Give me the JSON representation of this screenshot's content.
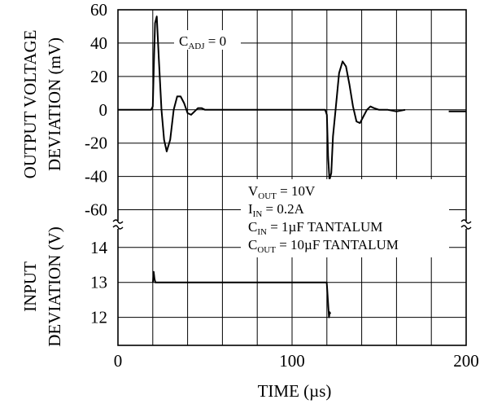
{
  "chart_data": {
    "type": "line",
    "x_axis": {
      "label": "TIME (µs)",
      "range": [
        0,
        200
      ],
      "ticks": [
        0,
        20,
        40,
        60,
        80,
        100,
        120,
        140,
        160,
        180,
        200
      ],
      "tick_labels": [
        "0",
        "100",
        "200"
      ],
      "labeled_ticks": [
        0,
        100,
        200
      ]
    },
    "panels": [
      {
        "id": "output",
        "ylabel_lines": [
          "OUTPUT VOLTAGE",
          "DEVIATION (mV)"
        ],
        "y_range": [
          -70,
          60
        ],
        "y_ticks": [
          60,
          40,
          20,
          0,
          -20,
          -40,
          -60
        ],
        "y_tick_labels": [
          "60",
          "40",
          "20",
          "0",
          "-20",
          "-40",
          "-60"
        ],
        "series": [
          {
            "x": [
              0,
              19,
              20,
              20.7,
              21.3,
              22.3,
              23.5,
              25,
              26.5,
              28,
              30,
              32,
              34,
              36,
              38,
              40,
              42,
              44,
              46,
              48,
              50,
              53,
              56,
              60,
              80,
              100,
              119,
              120,
              120.7,
              121.5,
              122.5,
              123.5,
              125,
              127,
              129,
              131,
              133,
              135,
              137,
              139,
              141,
              143,
              145,
              147,
              150,
              155,
              160,
              165
            ],
            "y": [
              0,
              0,
              2,
              30,
              52,
              56,
              30,
              0,
              -18,
              -25,
              -18,
              0,
              8,
              8,
              4,
              -2,
              -3,
              -1,
              1,
              1,
              0,
              0,
              0,
              0,
              0,
              0,
              0,
              -3,
              -28,
              -42,
              -38,
              -16,
              0,
              22,
              29,
              26,
              15,
              2,
              -7,
              -8,
              -4,
              0,
              2,
              1,
              0,
              0,
              -1,
              0
            ]
          },
          {
            "x": [
              190,
              200
            ],
            "y": [
              -1,
              -1
            ]
          }
        ]
      },
      {
        "id": "input",
        "ylabel_lines": [
          "INPUT",
          "DEVIATION (V)"
        ],
        "y_range": [
          11.2,
          14.6
        ],
        "y_ticks": [
          14,
          13,
          12
        ],
        "y_tick_labels": [
          "14",
          "13",
          "12"
        ],
        "series": [
          {
            "x": [
              0,
              19.8,
              20.1,
              20.5,
              21,
              21.5,
              60,
              110,
              119.9,
              120.2,
              120.7,
              121.2,
              121.6,
              122
            ],
            "y": [
              null,
              null,
              13,
              13.3,
              13.1,
              13,
              13,
              13,
              13,
              12.8,
              12.4,
              12,
              12.15,
              12.1
            ]
          }
        ]
      }
    ],
    "annotations": {
      "cadj": {
        "main": "C",
        "sub": "ADJ",
        "rest": " = 0"
      },
      "conditions": [
        {
          "main": "V",
          "sub": "OUT",
          "rest": " = 10V"
        },
        {
          "main": "I",
          "sub": "IN",
          "rest": " = 0.2A"
        },
        {
          "main": "C",
          "sub": "IN",
          "rest": " = 1µF TANTALUM"
        },
        {
          "main": "C",
          "sub": "OUT",
          "rest": " = 10µF TANTALUM"
        }
      ]
    },
    "grid": true
  }
}
